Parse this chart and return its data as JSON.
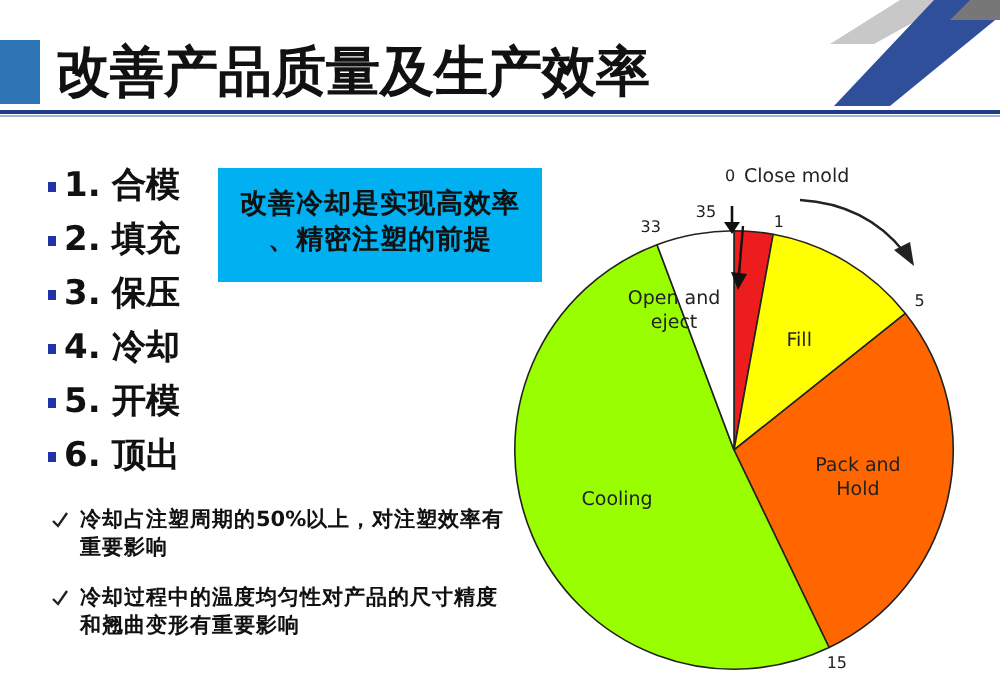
{
  "chart_data": {
    "type": "pie",
    "title": "改善产品质量及生产效率",
    "categories": [
      "Close mold",
      "Fill",
      "Pack and Hold",
      "Cooling",
      "Open and eject"
    ],
    "values": [
      2.86,
      11.43,
      28.57,
      51.43,
      5.71
    ],
    "colors": [
      "#ee1d1d",
      "#ffff00",
      "#ff6600",
      "#99ff00",
      "#ffffff"
    ],
    "annotations": [
      "1. 合模",
      "2. 填充",
      "3. 保压",
      "4. 冷却",
      "5. 开模",
      "6. 顶出",
      "改善冷却是实现高效率、精密注塑的前提",
      "冷却占注塑周期的50%以上，对注塑效率有重要影响",
      "冷却过程中的温度均匀性对产品的尺寸精度和翘曲变形有重要影响",
      "0",
      "1",
      "5",
      "15",
      "33",
      "35"
    ]
  }
}
